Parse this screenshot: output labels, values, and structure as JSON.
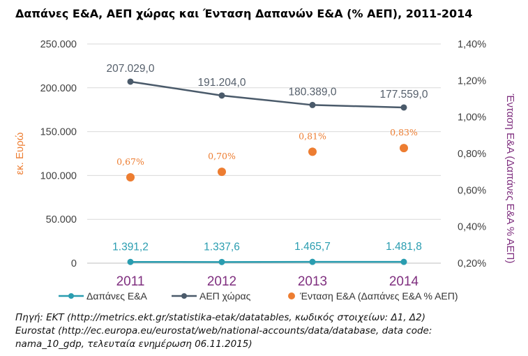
{
  "title": "Δαπάνες Ε&Α, ΑΕΠ χώρας και Ένταση Δαπανών Ε&Α (% ΑΕΠ), 2011-2014",
  "chart_data": {
    "type": "line",
    "categories": [
      "2011",
      "2012",
      "2013",
      "2014"
    ],
    "ylabel": "εκ. Ευρώ",
    "ylabel_right": "Ένταση Ε&Α (Δαπάνες Ε&Α % ΑΕΠ)",
    "ylim": [
      0,
      250000
    ],
    "ylim_right": [
      0.002,
      0.014
    ],
    "y_ticks": [
      "0",
      "50.000",
      "100.000",
      "150.000",
      "200.000",
      "250.000"
    ],
    "y_ticks_right": [
      "0,20%",
      "0,40%",
      "0,60%",
      "0,80%",
      "1,00%",
      "1,20%",
      "1,40%"
    ],
    "grid": true,
    "legend_position": "bottom",
    "series": [
      {
        "name": "Δαπάνες Ε&Α",
        "type": "line",
        "axis": "left",
        "color": "#2a9db0",
        "values": [
          1391.2,
          1337.6,
          1465.7,
          1481.8
        ],
        "labels": [
          "1.391,2",
          "1.337,6",
          "1.465,7",
          "1.481,8"
        ]
      },
      {
        "name": "ΑΕΠ χώρας",
        "type": "line",
        "axis": "left",
        "color": "#4a5a6a",
        "values": [
          207029.0,
          191204.0,
          180389.0,
          177559.0
        ],
        "labels": [
          "207.029,0",
          "191.204,0",
          "180.389,0",
          "177.559,0"
        ]
      },
      {
        "name": "Ένταση Ε&Α (Δαπάνες Ε&Α % ΑΕΠ)",
        "type": "scatter",
        "axis": "right",
        "color": "#ed7d31",
        "values": [
          0.0067,
          0.007,
          0.0081,
          0.0083
        ],
        "labels": [
          "0,67%",
          "0,70%",
          "0,81%",
          "0,83%"
        ]
      }
    ]
  },
  "notes": {
    "line1": "Πηγή: ΕΚΤ (http://metrics.ekt.gr/statistika-etak/datatables, κωδικός στοιχείων: Δ1, Δ2)",
    "line2": "Eurostat (http://ec.europa.eu/eurostat/web/national-accounts/data/database, data code:",
    "line3": "nama_10_gdp, τελευταία ενημέρωση 06.11.2015)"
  }
}
